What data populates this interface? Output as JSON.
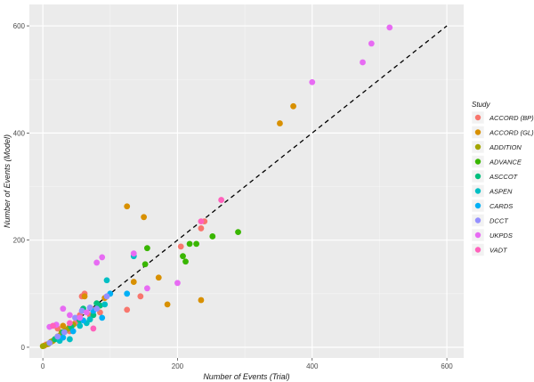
{
  "chart_data": {
    "type": "scatter",
    "xlabel": "Number of Events (Trial)",
    "ylabel": "Number of Events (Model)",
    "xlim": [
      -20,
      625
    ],
    "ylim": [
      -20,
      640
    ],
    "xticks": [
      0,
      200,
      400,
      600
    ],
    "yticks": [
      0,
      200,
      400,
      600
    ],
    "grid": true,
    "reference_line": {
      "style": "dashed",
      "color": "#000000",
      "from": [
        0,
        0
      ],
      "to": [
        600,
        600
      ]
    },
    "legend": {
      "title": "Study",
      "placement": "right"
    },
    "series": [
      {
        "name": "ACCORD (BP)",
        "color": "#F8766D",
        "points": [
          [
            5,
            5
          ],
          [
            12,
            10
          ],
          [
            22,
            18
          ],
          [
            28,
            22
          ],
          [
            35,
            32
          ],
          [
            40,
            30
          ],
          [
            48,
            45
          ],
          [
            55,
            60
          ],
          [
            58,
            95
          ],
          [
            62,
            100
          ],
          [
            70,
            60
          ],
          [
            75,
            70
          ],
          [
            85,
            65
          ],
          [
            125,
            70
          ],
          [
            145,
            95
          ],
          [
            205,
            188
          ],
          [
            235,
            222
          ],
          [
            240,
            235
          ],
          [
            22,
            35
          ]
        ]
      },
      {
        "name": "ACCORD (GL)",
        "color": "#D89000",
        "points": [
          [
            2,
            3
          ],
          [
            15,
            12
          ],
          [
            25,
            22
          ],
          [
            30,
            40
          ],
          [
            40,
            38
          ],
          [
            62,
            95
          ],
          [
            92,
            92
          ],
          [
            125,
            263
          ],
          [
            135,
            122
          ],
          [
            150,
            243
          ],
          [
            172,
            130
          ],
          [
            185,
            80
          ],
          [
            235,
            88
          ],
          [
            352,
            418
          ],
          [
            372,
            450
          ]
        ]
      },
      {
        "name": "ADDITION",
        "color": "#A3A500",
        "points": [
          [
            0,
            2
          ],
          [
            8,
            6
          ],
          [
            12,
            10
          ],
          [
            18,
            15
          ],
          [
            22,
            20
          ],
          [
            28,
            28
          ],
          [
            33,
            30
          ],
          [
            38,
            35
          ],
          [
            45,
            42
          ]
        ]
      },
      {
        "name": "ADVANCE",
        "color": "#39B600",
        "points": [
          [
            155,
            185
          ],
          [
            152,
            155
          ],
          [
            208,
            170
          ],
          [
            212,
            160
          ],
          [
            218,
            193
          ],
          [
            228,
            193
          ],
          [
            252,
            207
          ],
          [
            290,
            215
          ]
        ]
      },
      {
        "name": "ASCCOT",
        "color": "#00BF7D",
        "points": [
          [
            18,
            15
          ],
          [
            30,
            28
          ],
          [
            42,
            38
          ],
          [
            55,
            50
          ],
          [
            60,
            72
          ],
          [
            75,
            60
          ],
          [
            80,
            82
          ],
          [
            85,
            78
          ]
        ]
      },
      {
        "name": "ASPEN",
        "color": "#00BFC4",
        "points": [
          [
            25,
            12
          ],
          [
            40,
            15
          ],
          [
            55,
            40
          ],
          [
            70,
            52
          ],
          [
            95,
            125
          ],
          [
            135,
            170
          ],
          [
            92,
            80
          ],
          [
            65,
            45
          ]
        ]
      },
      {
        "name": "CARDS",
        "color": "#00B0F6",
        "points": [
          [
            30,
            18
          ],
          [
            45,
            30
          ],
          [
            60,
            50
          ],
          [
            75,
            68
          ],
          [
            100,
            100
          ],
          [
            125,
            100
          ],
          [
            88,
            55
          ]
        ]
      },
      {
        "name": "DCCT",
        "color": "#9590FF",
        "points": [
          [
            10,
            8
          ],
          [
            22,
            20
          ],
          [
            32,
            28
          ],
          [
            48,
            55
          ],
          [
            58,
            68
          ],
          [
            70,
            74
          ],
          [
            80,
            72
          ],
          [
            95,
            95
          ]
        ]
      },
      {
        "name": "UKPDS",
        "color": "#E76BF3",
        "points": [
          [
            10,
            38
          ],
          [
            20,
            42
          ],
          [
            30,
            72
          ],
          [
            40,
            60
          ],
          [
            55,
            55
          ],
          [
            65,
            65
          ],
          [
            80,
            158
          ],
          [
            88,
            168
          ],
          [
            135,
            175
          ],
          [
            155,
            110
          ],
          [
            200,
            120
          ],
          [
            400,
            495
          ],
          [
            475,
            532
          ],
          [
            488,
            567
          ],
          [
            515,
            597
          ]
        ]
      },
      {
        "name": "VADT",
        "color": "#FF62BC",
        "points": [
          [
            15,
            40
          ],
          [
            40,
            45
          ],
          [
            75,
            35
          ],
          [
            265,
            275
          ],
          [
            235,
            235
          ]
        ]
      }
    ]
  }
}
